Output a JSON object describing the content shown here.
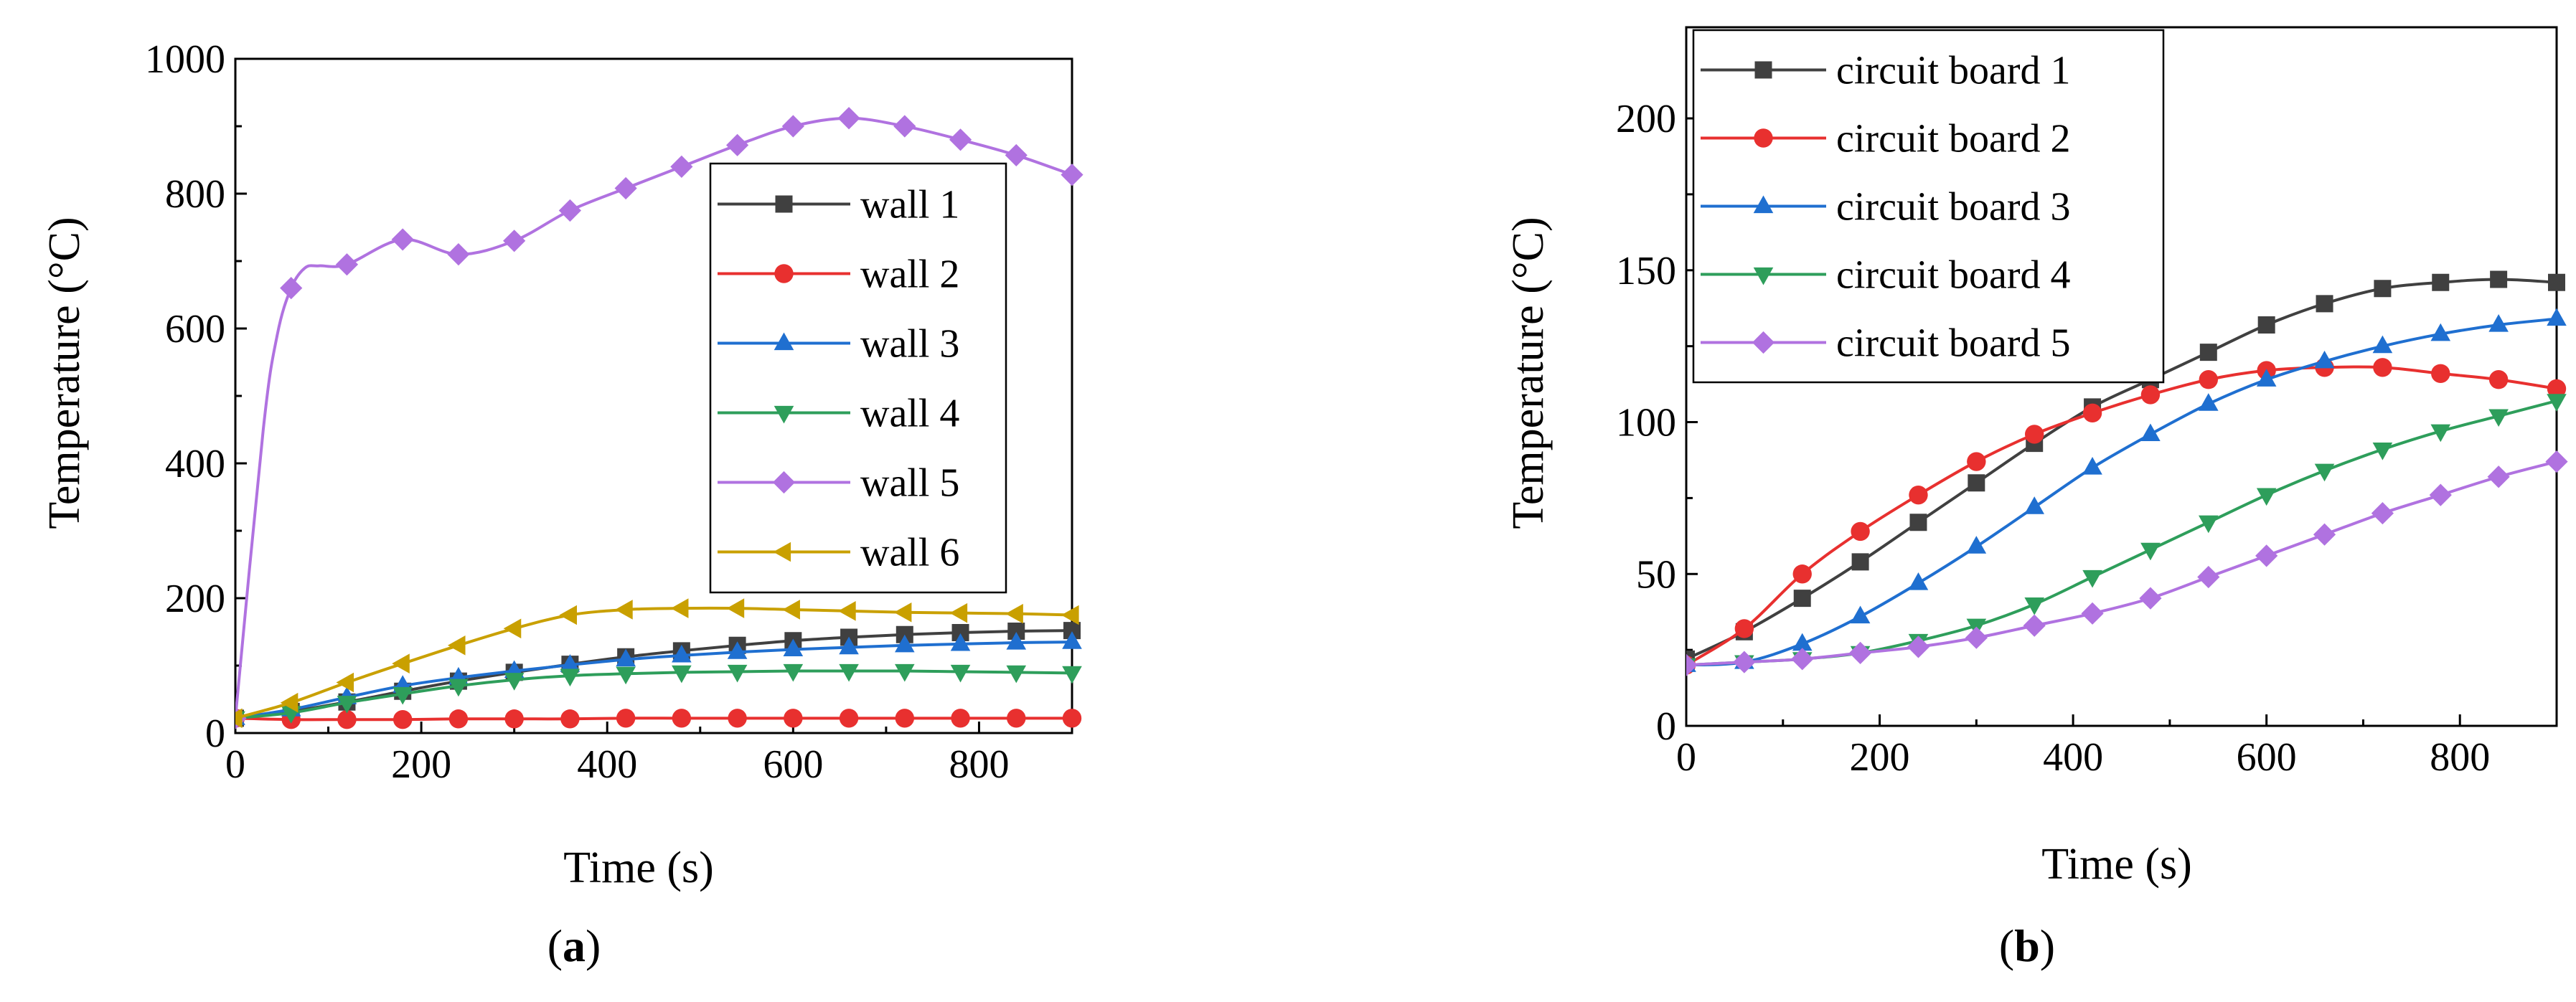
{
  "chart_data": [
    {
      "type": "line",
      "panel": "a",
      "caption": {
        "open": "(",
        "letter": "a",
        "close": ")"
      },
      "xlabel": "Time (s)",
      "ylabel": "Temperature (°C)",
      "xlim": [
        0,
        900
      ],
      "ylim": [
        0,
        1000
      ],
      "xticks": [
        0,
        200,
        400,
        600,
        800
      ],
      "yticks": [
        0,
        200,
        400,
        600,
        800,
        1000
      ],
      "legend_position": "right-middle",
      "series": [
        {
          "name": "wall 1",
          "color": "#404040",
          "marker": "square",
          "x": [
            0,
            60,
            120,
            180,
            240,
            300,
            360,
            420,
            480,
            540,
            600,
            660,
            720,
            780,
            840,
            900
          ],
          "y": [
            22,
            32,
            46,
            62,
            77,
            90,
            102,
            113,
            122,
            130,
            137,
            142,
            146,
            149,
            151,
            152
          ]
        },
        {
          "name": "wall 2",
          "color": "#e8302f",
          "marker": "circle",
          "x": [
            0,
            60,
            120,
            180,
            240,
            300,
            360,
            420,
            480,
            540,
            600,
            660,
            720,
            780,
            840,
            900
          ],
          "y": [
            22,
            20,
            20,
            20,
            21,
            21,
            21,
            22,
            22,
            22,
            22,
            22,
            22,
            22,
            22,
            22
          ]
        },
        {
          "name": "wall 3",
          "color": "#1f6fd0",
          "marker": "triangle-up",
          "x": [
            0,
            60,
            120,
            180,
            240,
            300,
            360,
            420,
            480,
            540,
            600,
            660,
            720,
            780,
            840,
            900
          ],
          "y": [
            22,
            35,
            53,
            70,
            82,
            92,
            101,
            109,
            115,
            120,
            124,
            127,
            130,
            132,
            134,
            135
          ]
        },
        {
          "name": "wall 4",
          "color": "#2e9e5b",
          "marker": "triangle-down",
          "x": [
            0,
            60,
            120,
            180,
            240,
            300,
            360,
            420,
            480,
            540,
            600,
            660,
            720,
            780,
            840,
            900
          ],
          "y": [
            22,
            30,
            45,
            58,
            70,
            79,
            85,
            88,
            90,
            91,
            92,
            92,
            92,
            91,
            90,
            89
          ]
        },
        {
          "name": "wall 5",
          "color": "#b072e0",
          "marker": "diamond",
          "x": [
            0,
            30,
            45,
            60,
            75,
            90,
            120,
            180,
            240,
            300,
            360,
            420,
            480,
            540,
            600,
            660,
            720,
            780,
            840,
            900
          ],
          "y": [
            22,
            450,
            590,
            660,
            690,
            693,
            695,
            732,
            710,
            730,
            775,
            808,
            840,
            872,
            900,
            912,
            900,
            880,
            857,
            828
          ]
        },
        {
          "name": "wall 6",
          "color": "#c9a000",
          "marker": "triangle-left",
          "x": [
            0,
            60,
            120,
            180,
            240,
            300,
            360,
            420,
            480,
            540,
            600,
            660,
            720,
            780,
            840,
            900
          ],
          "y": [
            22,
            45,
            75,
            103,
            130,
            155,
            175,
            183,
            185,
            185,
            183,
            181,
            179,
            178,
            177,
            175
          ]
        }
      ]
    },
    {
      "type": "line",
      "panel": "b",
      "caption": {
        "open": "(",
        "letter": "b",
        "close": ")"
      },
      "xlabel": "Time (s)",
      "ylabel": "Temperature (°C)",
      "xlim": [
        0,
        900
      ],
      "ylim": [
        0,
        230
      ],
      "xticks": [
        0,
        200,
        400,
        600,
        800
      ],
      "yticks": [
        0,
        50,
        100,
        150,
        200
      ],
      "legend_position": "top-left",
      "series": [
        {
          "name": "circuit board 1",
          "color": "#404040",
          "marker": "square",
          "x": [
            0,
            60,
            120,
            180,
            240,
            300,
            360,
            420,
            480,
            540,
            600,
            660,
            720,
            780,
            840,
            900
          ],
          "y": [
            22,
            31,
            42,
            54,
            67,
            80,
            93,
            105,
            114,
            123,
            132,
            139,
            144,
            146,
            147,
            146
          ]
        },
        {
          "name": "circuit board 2",
          "color": "#e8302f",
          "marker": "circle",
          "x": [
            0,
            60,
            120,
            180,
            240,
            300,
            360,
            420,
            480,
            540,
            600,
            660,
            720,
            780,
            840,
            900
          ],
          "y": [
            20,
            32,
            50,
            64,
            76,
            87,
            96,
            103,
            109,
            114,
            117,
            118,
            118,
            116,
            114,
            111
          ]
        },
        {
          "name": "circuit board 3",
          "color": "#1f6fd0",
          "marker": "triangle-up",
          "x": [
            0,
            60,
            120,
            180,
            240,
            300,
            360,
            420,
            480,
            540,
            600,
            660,
            720,
            780,
            840,
            900
          ],
          "y": [
            20,
            21,
            27,
            36,
            47,
            59,
            72,
            85,
            96,
            106,
            114,
            120,
            125,
            129,
            132,
            134
          ]
        },
        {
          "name": "circuit board 4",
          "color": "#2e9e5b",
          "marker": "triangle-down",
          "x": [
            0,
            60,
            120,
            180,
            240,
            300,
            360,
            420,
            480,
            540,
            600,
            660,
            720,
            780,
            840,
            900
          ],
          "y": [
            20,
            21,
            22,
            24,
            28,
            33,
            40,
            49,
            58,
            67,
            76,
            84,
            91,
            97,
            102,
            107
          ]
        },
        {
          "name": "circuit board 5",
          "color": "#b072e0",
          "marker": "diamond",
          "x": [
            0,
            60,
            120,
            180,
            240,
            300,
            360,
            420,
            480,
            540,
            600,
            660,
            720,
            780,
            840,
            900
          ],
          "y": [
            20,
            21,
            22,
            24,
            26,
            29,
            33,
            37,
            42,
            49,
            56,
            63,
            70,
            76,
            82,
            87
          ]
        }
      ]
    }
  ]
}
